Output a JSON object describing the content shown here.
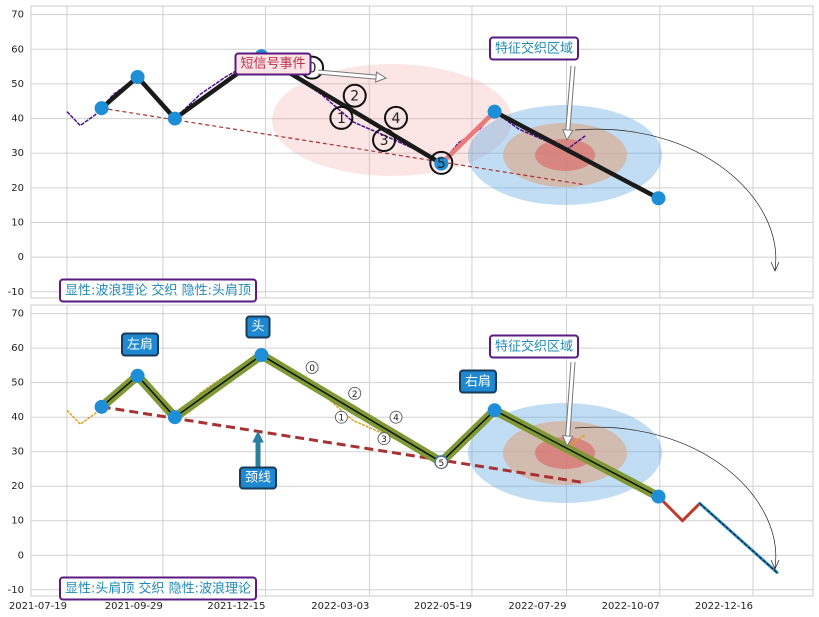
{
  "chart_data": [
    {
      "type": "line",
      "xlim": [
        "2021-06-22",
        "2023-01-30"
      ],
      "ylim": [
        -11.8,
        72.5
      ],
      "yticks": [
        -10,
        0,
        10,
        20,
        30,
        40,
        50,
        60,
        70
      ],
      "grid": true,
      "series": [
        {
          "color": "#4b0f8c",
          "x": [
            "2021-07-19",
            "2021-07-29",
            "2021-08-09",
            "2021-08-23",
            "2021-09-10",
            "2021-09-22",
            "2021-10-08",
            "2021-10-27",
            "2021-11-15",
            "2021-12-12",
            "2022-01-02",
            "2022-01-26",
            "2022-02-19",
            "2022-03-15",
            "2022-04-07",
            "2022-04-26",
            "2022-05-09",
            "2022-05-25",
            "2022-06-05",
            "2022-06-23",
            "2022-07-11",
            "2022-07-29",
            "2022-08-12"
          ],
          "values": [
            42,
            38,
            41,
            47,
            52,
            47,
            40,
            47,
            52,
            58,
            53,
            47,
            39,
            35,
            31,
            27,
            33,
            37,
            42,
            37,
            34,
            31,
            35
          ]
        }
      ],
      "wave": {
        "colors": [
          "#1a1a1a",
          "#1a1a1a",
          "#1a1a1a",
          "#1a1a1a",
          "#e87a7a",
          "#1a1a1a"
        ],
        "x": [
          "2021-08-14",
          "2021-09-10",
          "2021-10-08",
          "2021-12-12",
          "2022-04-26",
          "2022-06-05",
          "2022-10-06"
        ],
        "values": [
          43,
          52,
          40,
          58,
          27,
          42,
          17
        ]
      },
      "marker_color": "#1e8fd6",
      "neckline": {
        "color": "#a83232",
        "x": [
          "2021-08-14",
          "2022-08-10"
        ],
        "values": [
          43,
          21
        ]
      },
      "wave_labels": [
        {
          "text": "0",
          "x": "2022-01-19",
          "y": 54.7
        },
        {
          "text": "1",
          "x": "2022-02-10",
          "y": 40.2
        },
        {
          "text": "2",
          "x": "2022-02-20",
          "y": 46.6
        },
        {
          "text": "3",
          "x": "2022-03-14",
          "y": 33.8
        },
        {
          "text": "4",
          "x": "2022-03-23",
          "y": 40.2
        },
        {
          "text": "5",
          "x": "2022-04-26",
          "y": 27.2
        }
      ],
      "annotations": [
        "短信号事件",
        "特征交织区域",
        "显性:波浪理论 交织 隐性:头肩顶"
      ]
    },
    {
      "type": "line",
      "xlim": [
        "2021-06-22",
        "2023-01-30"
      ],
      "xticks": [
        "2021-07-19",
        "2021-09-29",
        "2021-12-15",
        "2022-03-03",
        "2022-05-19",
        "2022-07-29",
        "2022-10-07",
        "2022-12-16"
      ],
      "ylim": [
        -11.8,
        72.5
      ],
      "yticks": [
        -10,
        0,
        10,
        20,
        30,
        40,
        50,
        60,
        70
      ],
      "grid": true,
      "series": [
        {
          "color": "#e0a020",
          "x": [
            "2021-07-19",
            "2021-07-29",
            "2021-08-09",
            "2021-08-23",
            "2021-09-10",
            "2021-09-22",
            "2021-10-08",
            "2021-10-27",
            "2021-11-15",
            "2021-12-12",
            "2022-01-02",
            "2022-01-26",
            "2022-02-19",
            "2022-03-15",
            "2022-04-07",
            "2022-04-26",
            "2022-05-09",
            "2022-05-25",
            "2022-06-05",
            "2022-06-23",
            "2022-07-11",
            "2022-07-29",
            "2022-08-12"
          ],
          "values": [
            42,
            38,
            41,
            47,
            52,
            47,
            40,
            47,
            52,
            58,
            53,
            47,
            39,
            35,
            31,
            27,
            33,
            37,
            42,
            37,
            34,
            31,
            35
          ]
        }
      ],
      "wave": {
        "colors": [
          "#7f9a35",
          "#7f9a35",
          "#7f9a35",
          "#7f9a35",
          "#7f9a35",
          "#7f9a35"
        ],
        "x": [
          "2021-08-14",
          "2021-09-10",
          "2021-10-08",
          "2021-12-12",
          "2022-04-26",
          "2022-06-05",
          "2022-10-06"
        ],
        "values": [
          43,
          52,
          40,
          58,
          27,
          42,
          17
        ]
      },
      "marker_color": "#1e8fd6",
      "neckline": {
        "color": "#a83232",
        "x": [
          "2021-08-14",
          "2022-08-12"
        ],
        "values": [
          43,
          21
        ]
      },
      "projection": {
        "colors": [
          "#c0392b",
          "#c0392b",
          "#2a8fd0"
        ],
        "x": [
          "2022-10-06",
          "2022-10-24",
          "2022-11-06",
          "2023-01-03"
        ],
        "values": [
          17,
          10,
          15,
          -5
        ]
      },
      "wave_labels": [
        {
          "text": "0",
          "x": "2022-01-19",
          "y": 54.4
        },
        {
          "text": "1",
          "x": "2022-02-10",
          "y": 40
        },
        {
          "text": "2",
          "x": "2022-02-20",
          "y": 46.9
        },
        {
          "text": "3",
          "x": "2022-03-14",
          "y": 33.8
        },
        {
          "text": "4",
          "x": "2022-03-23",
          "y": 40
        },
        {
          "text": "5",
          "x": "2022-04-26",
          "y": 26.9
        }
      ],
      "annotations": [
        "左肩",
        "头",
        "颈线",
        "右肩",
        "特征交织区域",
        "显性:头肩顶 交织 隐性:波浪理论"
      ]
    }
  ]
}
